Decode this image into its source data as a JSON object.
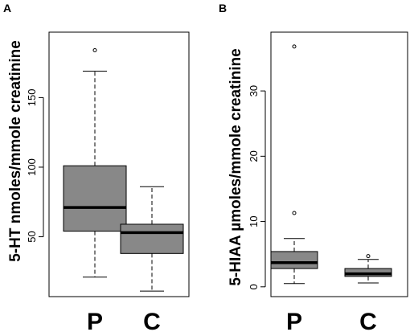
{
  "chart_data": [
    {
      "type": "box",
      "panel_label": "A",
      "ylabel": "5-HT nmoles/mmole creatinine",
      "categories": [
        "P",
        "C"
      ],
      "y_ticks": [
        50,
        100,
        150
      ],
      "ylim": [
        7,
        197
      ],
      "box_fill": "#888888",
      "boxes": [
        {
          "name": "P",
          "whisker_low": 21,
          "q1": 54,
          "median": 71,
          "q3": 101,
          "whisker_high": 169,
          "outliers": [
            184
          ]
        },
        {
          "name": "C",
          "whisker_low": 11,
          "q1": 38,
          "median": 53,
          "q3": 59,
          "whisker_high": 86,
          "outliers": []
        }
      ]
    },
    {
      "type": "box",
      "panel_label": "B",
      "ylabel": "5-HIAA µmoles/mmole creatinine",
      "categories": [
        "P",
        "C"
      ],
      "y_ticks": [
        0,
        10,
        20,
        30
      ],
      "ylim": [
        -1.5,
        39
      ],
      "box_fill": "#888888",
      "boxes": [
        {
          "name": "P",
          "whisker_low": 0.5,
          "q1": 2.8,
          "median": 3.7,
          "q3": 5.4,
          "whisker_high": 7.4,
          "outliers": [
            11.3,
            36.8
          ]
        },
        {
          "name": "C",
          "whisker_low": 0.6,
          "q1": 1.6,
          "median": 2.0,
          "q3": 2.8,
          "whisker_high": 4.2,
          "outliers": [
            4.7
          ]
        }
      ]
    }
  ]
}
